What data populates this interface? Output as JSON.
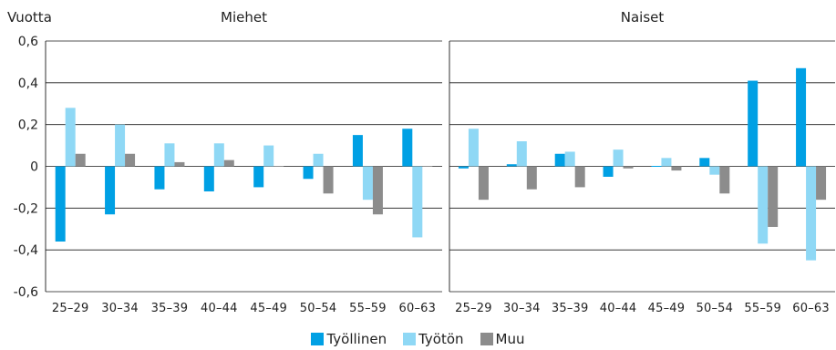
{
  "chart_data": {
    "type": "bar",
    "ylabel": "Vuotta",
    "ylim": [
      -0.6,
      0.6
    ],
    "yticks": [
      "0,6",
      "0,4",
      "0,2",
      "0",
      "-0,2",
      "-0,4",
      "-0,6"
    ],
    "ytick_values": [
      0.6,
      0.4,
      0.2,
      0,
      -0.2,
      -0.4,
      -0.6
    ],
    "categories": [
      "25–29",
      "30–34",
      "35–39",
      "40–44",
      "45–49",
      "50–54",
      "55–59",
      "60–63"
    ],
    "colors": {
      "Työllinen": "#00a0e4",
      "Työtön": "#8fd8f5",
      "Muu": "#8c8c8c"
    },
    "legend": [
      "Työllinen",
      "Työtön",
      "Muu"
    ],
    "legend_position": "bottom",
    "grid": true,
    "panels": [
      {
        "title": "Miehet",
        "series": [
          {
            "name": "Työllinen",
            "values": [
              -0.36,
              -0.23,
              -0.11,
              -0.12,
              -0.1,
              -0.06,
              0.15,
              0.18
            ]
          },
          {
            "name": "Työtön",
            "values": [
              0.28,
              0.2,
              0.11,
              0.11,
              0.1,
              0.06,
              -0.16,
              -0.34
            ]
          },
          {
            "name": "Muu",
            "values": [
              0.06,
              0.06,
              0.02,
              0.03,
              0.0,
              -0.13,
              -0.23,
              0.0
            ]
          }
        ]
      },
      {
        "title": "Naiset",
        "series": [
          {
            "name": "Työllinen",
            "values": [
              -0.01,
              0.01,
              0.06,
              -0.05,
              0.0,
              0.04,
              0.41,
              0.47
            ]
          },
          {
            "name": "Työtön",
            "values": [
              0.18,
              0.12,
              0.07,
              0.08,
              0.04,
              -0.04,
              -0.37,
              -0.45
            ]
          },
          {
            "name": "Muu",
            "values": [
              -0.16,
              -0.11,
              -0.1,
              -0.01,
              -0.02,
              -0.13,
              -0.29,
              -0.16
            ]
          }
        ]
      }
    ]
  }
}
